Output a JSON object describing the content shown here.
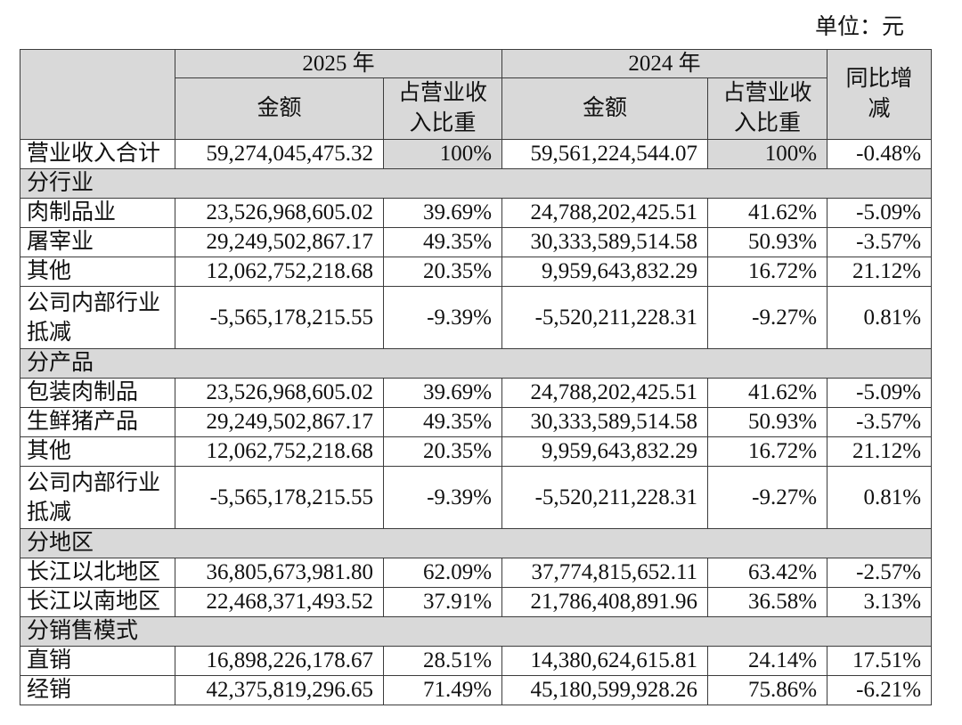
{
  "unit_label": "单位：元",
  "colors": {
    "header_fill": "#d9d9d9",
    "grid_line": "#3c3c3c",
    "text": "#111111",
    "background": "#ffffff"
  },
  "header": {
    "year_2025": "2025 年",
    "year_2024": "2024 年",
    "yoy_change": "同比增\n减",
    "amount_2025": "金额",
    "share_2025": "占营业收\n入比重",
    "amount_2024": "金额",
    "share_2024": "占营业收\n入比重"
  },
  "total": {
    "label": "营业收入合计",
    "amount_2025": "59,274,045,475.32",
    "share_2025": "100%",
    "amount_2024": "59,561,224,544.07",
    "share_2024": "100%",
    "yoy_change": "-0.48%"
  },
  "by_industry": {
    "title": "分行业",
    "rows": [
      {
        "label": "肉制品业",
        "amount_2025": "23,526,968,605.02",
        "share_2025": "39.69%",
        "amount_2024": "24,788,202,425.51",
        "share_2024": "41.62%",
        "yoy_change": "-5.09%"
      },
      {
        "label": "屠宰业",
        "amount_2025": "29,249,502,867.17",
        "share_2025": "49.35%",
        "amount_2024": "30,333,589,514.58",
        "share_2024": "50.93%",
        "yoy_change": "-3.57%"
      },
      {
        "label": "其他",
        "amount_2025": "12,062,752,218.68",
        "share_2025": "20.35%",
        "amount_2024": "9,959,643,832.29",
        "share_2024": "16.72%",
        "yoy_change": "21.12%"
      },
      {
        "label": "公司内部行业\n抵减",
        "amount_2025": "-5,565,178,215.55",
        "share_2025": "-9.39%",
        "amount_2024": "-5,520,211,228.31",
        "share_2024": "-9.27%",
        "yoy_change": "0.81%"
      }
    ]
  },
  "by_product": {
    "title": "分产品",
    "rows": [
      {
        "label": "包装肉制品",
        "amount_2025": "23,526,968,605.02",
        "share_2025": "39.69%",
        "amount_2024": "24,788,202,425.51",
        "share_2024": "41.62%",
        "yoy_change": "-5.09%"
      },
      {
        "label": "生鲜猪产品",
        "amount_2025": "29,249,502,867.17",
        "share_2025": "49.35%",
        "amount_2024": "30,333,589,514.58",
        "share_2024": "50.93%",
        "yoy_change": "-3.57%"
      },
      {
        "label": "其他",
        "amount_2025": "12,062,752,218.68",
        "share_2025": "20.35%",
        "amount_2024": "9,959,643,832.29",
        "share_2024": "16.72%",
        "yoy_change": "21.12%"
      },
      {
        "label": "公司内部行业\n抵减",
        "amount_2025": "-5,565,178,215.55",
        "share_2025": "-9.39%",
        "amount_2024": "-5,520,211,228.31",
        "share_2024": "-9.27%",
        "yoy_change": "0.81%"
      }
    ]
  },
  "by_region": {
    "title": "分地区",
    "rows": [
      {
        "label": "长江以北地区",
        "amount_2025": "36,805,673,981.80",
        "share_2025": "62.09%",
        "amount_2024": "37,774,815,652.11",
        "share_2024": "63.42%",
        "yoy_change": "-2.57%"
      },
      {
        "label": "长江以南地区",
        "amount_2025": "22,468,371,493.52",
        "share_2025": "37.91%",
        "amount_2024": "21,786,408,891.96",
        "share_2024": "36.58%",
        "yoy_change": "3.13%"
      }
    ]
  },
  "by_sales_model": {
    "title": "分销售模式",
    "rows": [
      {
        "label": "直销",
        "amount_2025": "16,898,226,178.67",
        "share_2025": "28.51%",
        "amount_2024": "14,380,624,615.81",
        "share_2024": "24.14%",
        "yoy_change": "17.51%"
      },
      {
        "label": "经销",
        "amount_2025": "42,375,819,296.65",
        "share_2025": "71.49%",
        "amount_2024": "45,180,599,928.26",
        "share_2024": "75.86%",
        "yoy_change": "-6.21%"
      }
    ]
  }
}
